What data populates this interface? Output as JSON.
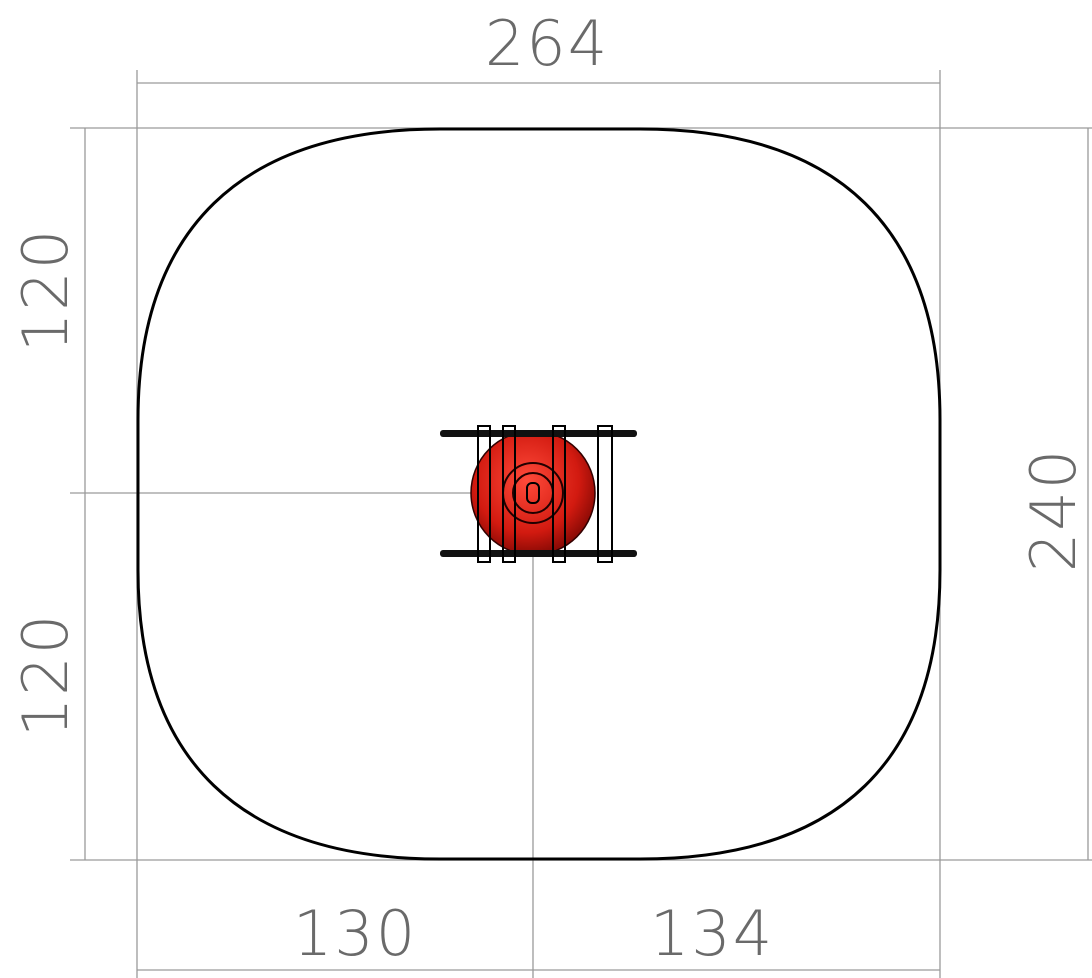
{
  "dimensions": {
    "overall_width": "264",
    "overall_depth": "240",
    "upper_half": "120",
    "lower_half": "120",
    "left_offset": "130",
    "right_offset": "134"
  }
}
